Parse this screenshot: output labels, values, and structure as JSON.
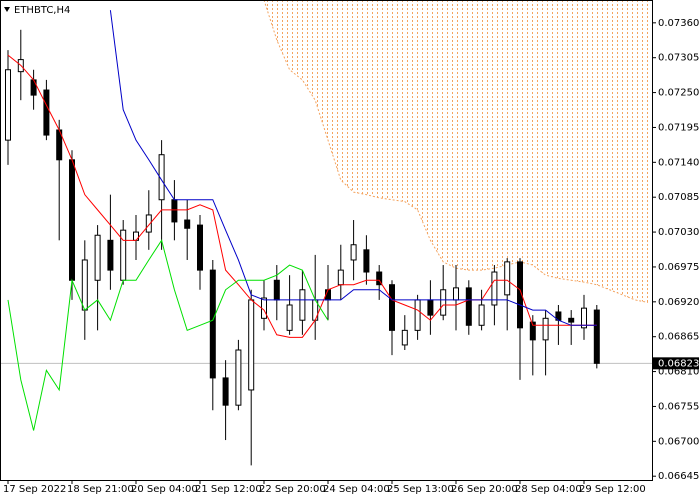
{
  "chart_data": {
    "type": "candlestick",
    "title": "ETHBTC,H4",
    "categories": [
      "17 Sep 2022",
      null,
      null,
      null,
      null,
      "18 Sep 21:00",
      null,
      null,
      null,
      null,
      "20 Sep 04:00",
      null,
      null,
      null,
      null,
      "21 Sep 12:00",
      null,
      null,
      null,
      null,
      "22 Sep 20:00",
      null,
      null,
      null,
      null,
      "24 Sep 04:00",
      null,
      null,
      null,
      null,
      "25 Sep 13:00",
      null,
      null,
      null,
      null,
      "26 Sep 20:00",
      null,
      null,
      null,
      null,
      "28 Sep 04:00",
      null,
      null,
      null,
      null,
      "29 Sep 12:00",
      null,
      null,
      null,
      null,
      null
    ],
    "open": [
      0.07175,
      0.07283,
      0.0727,
      0.07254,
      0.07191,
      0.07144,
      0.06907,
      0.06954,
      0.07017,
      0.06954,
      0.07017,
      0.0703,
      0.07081,
      0.07081,
      0.07049,
      0.07041,
      0.0697,
      0.068,
      0.06757,
      0.06781,
      0.06894,
      0.06954,
      0.06875,
      0.06891,
      0.06891,
      0.06939,
      0.06947,
      0.06986,
      0.07002,
      0.06967,
      0.06947,
      0.06852,
      0.06875,
      0.06923,
      0.06899,
      0.06923,
      0.06942,
      0.06883,
      0.06915,
      0.06931,
      0.06983,
      0.06888,
      0.0686,
      0.06904,
      0.06894,
      0.06879,
      0.06907,
      null,
      null,
      null,
      null
    ],
    "high": [
      0.07317,
      0.07349,
      0.07286,
      0.0727,
      0.07207,
      0.07159,
      0.07017,
      0.07041,
      0.07089,
      0.07049,
      0.07057,
      0.07096,
      0.07175,
      0.07112,
      0.07081,
      0.07057,
      0.06986,
      0.06828,
      0.0686,
      0.06939,
      0.06954,
      0.06978,
      0.06962,
      0.0697,
      0.06994,
      0.06978,
      0.0701,
      0.07049,
      0.07025,
      0.06978,
      0.06954,
      0.06899,
      0.06931,
      0.06954,
      0.06978,
      0.06978,
      0.06954,
      0.06939,
      0.06978,
      0.06989,
      0.06989,
      0.06899,
      0.06907,
      0.06915,
      0.06907,
      0.06931,
      0.06915,
      null,
      null,
      null,
      null
    ],
    "low": [
      0.07136,
      0.07238,
      0.07223,
      0.07175,
      0.07017,
      0.06923,
      0.0686,
      0.06875,
      0.06939,
      0.06947,
      0.06986,
      0.07002,
      0.07002,
      0.07017,
      0.06986,
      0.06939,
      0.06749,
      0.06702,
      0.06749,
      0.06662,
      0.06875,
      0.06891,
      0.06868,
      0.06868,
      0.0686,
      0.06891,
      0.06923,
      0.06954,
      0.06947,
      0.06923,
      0.06836,
      0.06844,
      0.0686,
      0.06868,
      0.06891,
      0.06875,
      0.06868,
      0.06875,
      0.06883,
      0.06875,
      0.06797,
      0.06804,
      0.06804,
      0.06852,
      0.06852,
      0.0686,
      0.06815,
      null,
      null,
      null,
      null
    ],
    "close": [
      0.07286,
      0.07302,
      0.07246,
      0.07183,
      0.07144,
      0.06954,
      0.06986,
      0.07025,
      0.0697,
      0.07033,
      0.0703,
      0.07057,
      0.07152,
      0.07046,
      0.07036,
      0.0697,
      0.068,
      0.06757,
      0.06844,
      0.06923,
      0.06926,
      0.06923,
      0.06915,
      0.06939,
      0.06923,
      0.06923,
      0.0697,
      0.0701,
      0.06967,
      0.06947,
      0.06875,
      0.06875,
      0.06923,
      0.06899,
      0.06939,
      0.06942,
      0.06883,
      0.06915,
      0.06967,
      0.06983,
      0.06879,
      0.0686,
      0.06894,
      0.06891,
      0.06888,
      0.0691,
      0.06823,
      null,
      null,
      null,
      null
    ],
    "series": [
      {
        "color": "#ff0000",
        "values": [
          0.07309,
          0.07293,
          0.0727,
          0.0723,
          0.07191,
          0.07144,
          0.07089,
          0.07065,
          0.07041,
          0.07017,
          0.07017,
          0.07041,
          0.07065,
          0.07065,
          0.07065,
          0.07073,
          0.07065,
          0.0697,
          0.06947,
          0.06923,
          0.06907,
          0.06868,
          0.06864,
          0.06864,
          0.06891,
          0.06939,
          0.06947,
          0.06947,
          0.06954,
          0.06954,
          0.06923,
          0.06915,
          0.06907,
          0.06891,
          0.06915,
          0.06915,
          0.06923,
          0.06923,
          0.06954,
          0.06954,
          0.06939,
          0.06883,
          0.06883,
          0.06883,
          0.06883,
          0.06883,
          0.06883,
          null,
          null,
          null,
          null
        ]
      },
      {
        "color": "#0000c8",
        "values": [
          null,
          null,
          null,
          null,
          null,
          null,
          null,
          null,
          0.0738,
          0.07223,
          0.07175,
          0.07144,
          0.07112,
          0.07081,
          0.07081,
          0.07081,
          0.07081,
          0.07033,
          0.06986,
          0.06931,
          0.06923,
          0.06923,
          0.06923,
          0.06923,
          0.06923,
          0.06923,
          0.06923,
          0.06939,
          0.06939,
          0.06939,
          0.06923,
          0.06923,
          0.06923,
          0.06923,
          0.06923,
          0.06923,
          0.06923,
          0.06923,
          0.06923,
          0.06923,
          0.06915,
          0.06907,
          0.06907,
          0.06891,
          0.06883,
          0.06883,
          0.06883,
          null,
          null,
          null,
          null
        ]
      },
      {
        "color": "#00e000",
        "values": [
          0.06923,
          0.06797,
          0.06717,
          0.06812,
          0.06781,
          0.06954,
          0.06907,
          0.06923,
          0.06891,
          0.06954,
          0.06954,
          0.06986,
          0.07017,
          0.06939,
          0.06875,
          0.06883,
          0.06891,
          0.06939,
          0.06954,
          0.06954,
          0.06954,
          0.06962,
          0.06978,
          0.0697,
          0.06923,
          0.06891,
          null,
          null,
          null,
          null,
          null,
          null,
          null,
          null,
          null,
          null,
          null,
          null,
          null,
          null,
          null,
          null,
          null,
          null,
          null,
          null,
          null,
          null,
          null,
          null,
          null
        ]
      },
      {
        "color": "#f4a460",
        "dash": true,
        "cloud": true,
        "values": [
          null,
          null,
          null,
          null,
          null,
          null,
          null,
          null,
          null,
          null,
          null,
          null,
          null,
          null,
          null,
          null,
          null,
          null,
          null,
          null,
          0.07396,
          0.07333,
          0.07286,
          0.0727,
          0.07238,
          0.07175,
          0.07112,
          0.07093,
          0.07089,
          0.07084,
          0.07081,
          0.07078,
          0.07065,
          0.07017,
          0.06983,
          0.06973,
          0.0697,
          0.0697,
          0.06973,
          0.06978,
          0.06983,
          0.06978,
          0.06962,
          0.06957,
          0.06954,
          0.06951,
          0.06947,
          0.06939,
          0.06931,
          0.06923,
          0.06919
        ]
      }
    ],
    "ylim": [
      0.06639,
      0.07396
    ],
    "yticks": [
      {
        "value": 0.0736,
        "label": "0.07360"
      },
      0.07305,
      {
        "value": 0.0725,
        "label": "0.07250"
      },
      0.07195,
      {
        "value": 0.0714,
        "label": "0.07140"
      },
      0.07085,
      {
        "value": 0.0703,
        "label": "0.07030"
      },
      0.06975,
      {
        "value": 0.0692,
        "label": "0.06920"
      },
      0.06865,
      {
        "value": 0.0681,
        "label": "0.06810"
      },
      0.06755,
      {
        "value": 0.067,
        "label": "0.06700"
      },
      0.06645
    ]
  }
}
